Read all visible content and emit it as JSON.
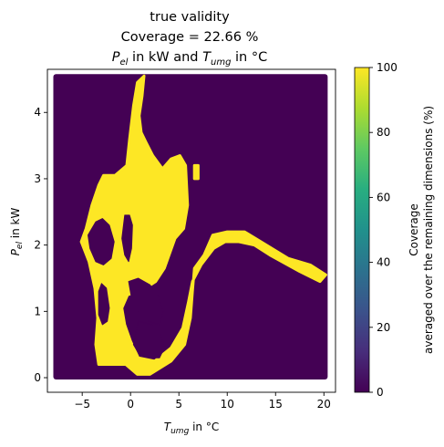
{
  "chart_data": {
    "type": "heatmap",
    "title_lines": [
      "true validity",
      "Coverage = 22.66 %"
    ],
    "title_line3": {
      "p_main": "P",
      "p_sub": "el",
      "mid": " in kW and ",
      "t_main": "T",
      "t_sub": "umg",
      "end": " in °C"
    },
    "xlabel": {
      "main": "T",
      "sub": "umg",
      "rest": " in °C"
    },
    "ylabel": {
      "main": "P",
      "sub": "el",
      "rest": " in kW"
    },
    "xlim": [
      -8.6,
      21.2
    ],
    "ylim": [
      -0.22,
      4.65
    ],
    "xticks": [
      -5,
      0,
      5,
      10,
      15,
      20
    ],
    "xtick_labels": [
      "−5",
      "0",
      "5",
      "10",
      "15",
      "20"
    ],
    "yticks": [
      0,
      1,
      2,
      3,
      4
    ],
    "ytick_labels": [
      "0",
      "1",
      "2",
      "3",
      "4"
    ],
    "grid_extent": {
      "x": [
        -7.8,
        20.2
      ],
      "y": [
        0,
        4.55
      ]
    },
    "background_value": 0,
    "valid_value": 100,
    "valid_region_polygons": [
      [
        [
          1.4,
          4.55
        ],
        [
          0.7,
          4.45
        ],
        [
          0.3,
          4.1
        ],
        [
          -0.1,
          3.6
        ],
        [
          -0.4,
          3.2
        ],
        [
          -1.6,
          3.05
        ],
        [
          -2.8,
          3.05
        ],
        [
          -3.3,
          2.9
        ],
        [
          -4.0,
          2.6
        ],
        [
          -4.6,
          2.25
        ],
        [
          -5.1,
          2.05
        ],
        [
          -4.3,
          1.75
        ],
        [
          -3.7,
          1.35
        ],
        [
          -3.4,
          0.9
        ],
        [
          -3.6,
          0.5
        ],
        [
          -3.3,
          0.2
        ],
        [
          -0.5,
          0.2
        ],
        [
          0.7,
          0.05
        ],
        [
          2.0,
          0.05
        ],
        [
          4.2,
          0.25
        ],
        [
          5.6,
          0.5
        ],
        [
          6.2,
          0.9
        ],
        [
          6.4,
          1.3
        ],
        [
          6.6,
          1.65
        ],
        [
          7.6,
          1.85
        ],
        [
          8.5,
          2.15
        ],
        [
          10.0,
          2.2
        ],
        [
          11.8,
          2.2
        ],
        [
          13.5,
          2.05
        ],
        [
          16.3,
          1.8
        ],
        [
          18.6,
          1.7
        ],
        [
          20.2,
          1.55
        ],
        [
          19.6,
          1.45
        ],
        [
          17.5,
          1.6
        ],
        [
          14.4,
          1.85
        ],
        [
          12.8,
          2.0
        ],
        [
          11.2,
          2.05
        ],
        [
          9.8,
          2.05
        ],
        [
          8.6,
          1.95
        ],
        [
          7.3,
          1.7
        ],
        [
          6.4,
          1.45
        ],
        [
          6.0,
          1.15
        ],
        [
          5.4,
          0.75
        ],
        [
          4.2,
          0.45
        ],
        [
          2.5,
          0.25
        ],
        [
          0.8,
          0.3
        ],
        [
          0.0,
          0.55
        ],
        [
          -0.6,
          0.8
        ],
        [
          -0.9,
          1.05
        ],
        [
          -0.3,
          1.25
        ],
        [
          1.0,
          1.3
        ],
        [
          2.6,
          1.45
        ],
        [
          3.5,
          1.65
        ],
        [
          4.6,
          2.1
        ],
        [
          5.5,
          2.25
        ],
        [
          5.9,
          2.6
        ],
        [
          5.7,
          3.2
        ],
        [
          5.1,
          3.35
        ],
        [
          4.2,
          3.3
        ],
        [
          3.3,
          3.15
        ],
        [
          2.3,
          3.35
        ],
        [
          1.6,
          3.55
        ],
        [
          1.1,
          3.7
        ],
        [
          0.9,
          3.95
        ],
        [
          1.2,
          4.25
        ]
      ],
      [
        [
          6.6,
          3.0
        ],
        [
          7.0,
          3.0
        ],
        [
          7.0,
          3.2
        ],
        [
          6.6,
          3.2
        ]
      ]
    ],
    "hole_polygons": [
      [
        [
          -4.4,
          2.15
        ],
        [
          -3.6,
          2.35
        ],
        [
          -2.9,
          2.4
        ],
        [
          -2.2,
          2.3
        ],
        [
          -1.7,
          2.05
        ],
        [
          -2.0,
          1.8
        ],
        [
          -2.8,
          1.7
        ],
        [
          -3.6,
          1.75
        ],
        [
          -4.2,
          1.95
        ]
      ],
      [
        [
          -0.6,
          2.45
        ],
        [
          -0.1,
          2.45
        ],
        [
          0.2,
          2.3
        ],
        [
          0.1,
          1.95
        ],
        [
          -0.2,
          1.75
        ],
        [
          -0.6,
          1.85
        ],
        [
          -0.9,
          2.1
        ]
      ],
      [
        [
          -3.3,
          1.3
        ],
        [
          -3.0,
          1.42
        ],
        [
          -2.5,
          1.35
        ],
        [
          -2.2,
          1.05
        ],
        [
          -2.4,
          0.85
        ],
        [
          -2.9,
          0.8
        ],
        [
          -3.3,
          0.95
        ]
      ],
      [
        [
          -0.2,
          1.45
        ],
        [
          0.8,
          1.5
        ],
        [
          2.0,
          1.4
        ],
        [
          2.8,
          1.25
        ],
        [
          3.4,
          1.0
        ],
        [
          3.0,
          0.8
        ],
        [
          1.8,
          0.85
        ],
        [
          0.8,
          1.0
        ],
        [
          0.1,
          1.2
        ]
      ],
      [
        [
          0.3,
          0.5
        ],
        [
          0.8,
          0.85
        ],
        [
          2.2,
          0.8
        ],
        [
          3.1,
          0.65
        ],
        [
          3.5,
          0.45
        ],
        [
          3.0,
          0.3
        ],
        [
          1.9,
          0.3
        ],
        [
          0.9,
          0.35
        ]
      ]
    ],
    "colorbar": {
      "colormap": "viridis",
      "range": [
        0,
        100
      ],
      "ticks": [
        0,
        20,
        40,
        60,
        80,
        100
      ],
      "tick_labels": [
        "0",
        "20",
        "40",
        "60",
        "80",
        "100"
      ],
      "label_lines": [
        "Coverage",
        "averaged over the remaining dimensions (%)"
      ]
    },
    "colors": {
      "low": "#440154",
      "high": "#fde725"
    }
  }
}
